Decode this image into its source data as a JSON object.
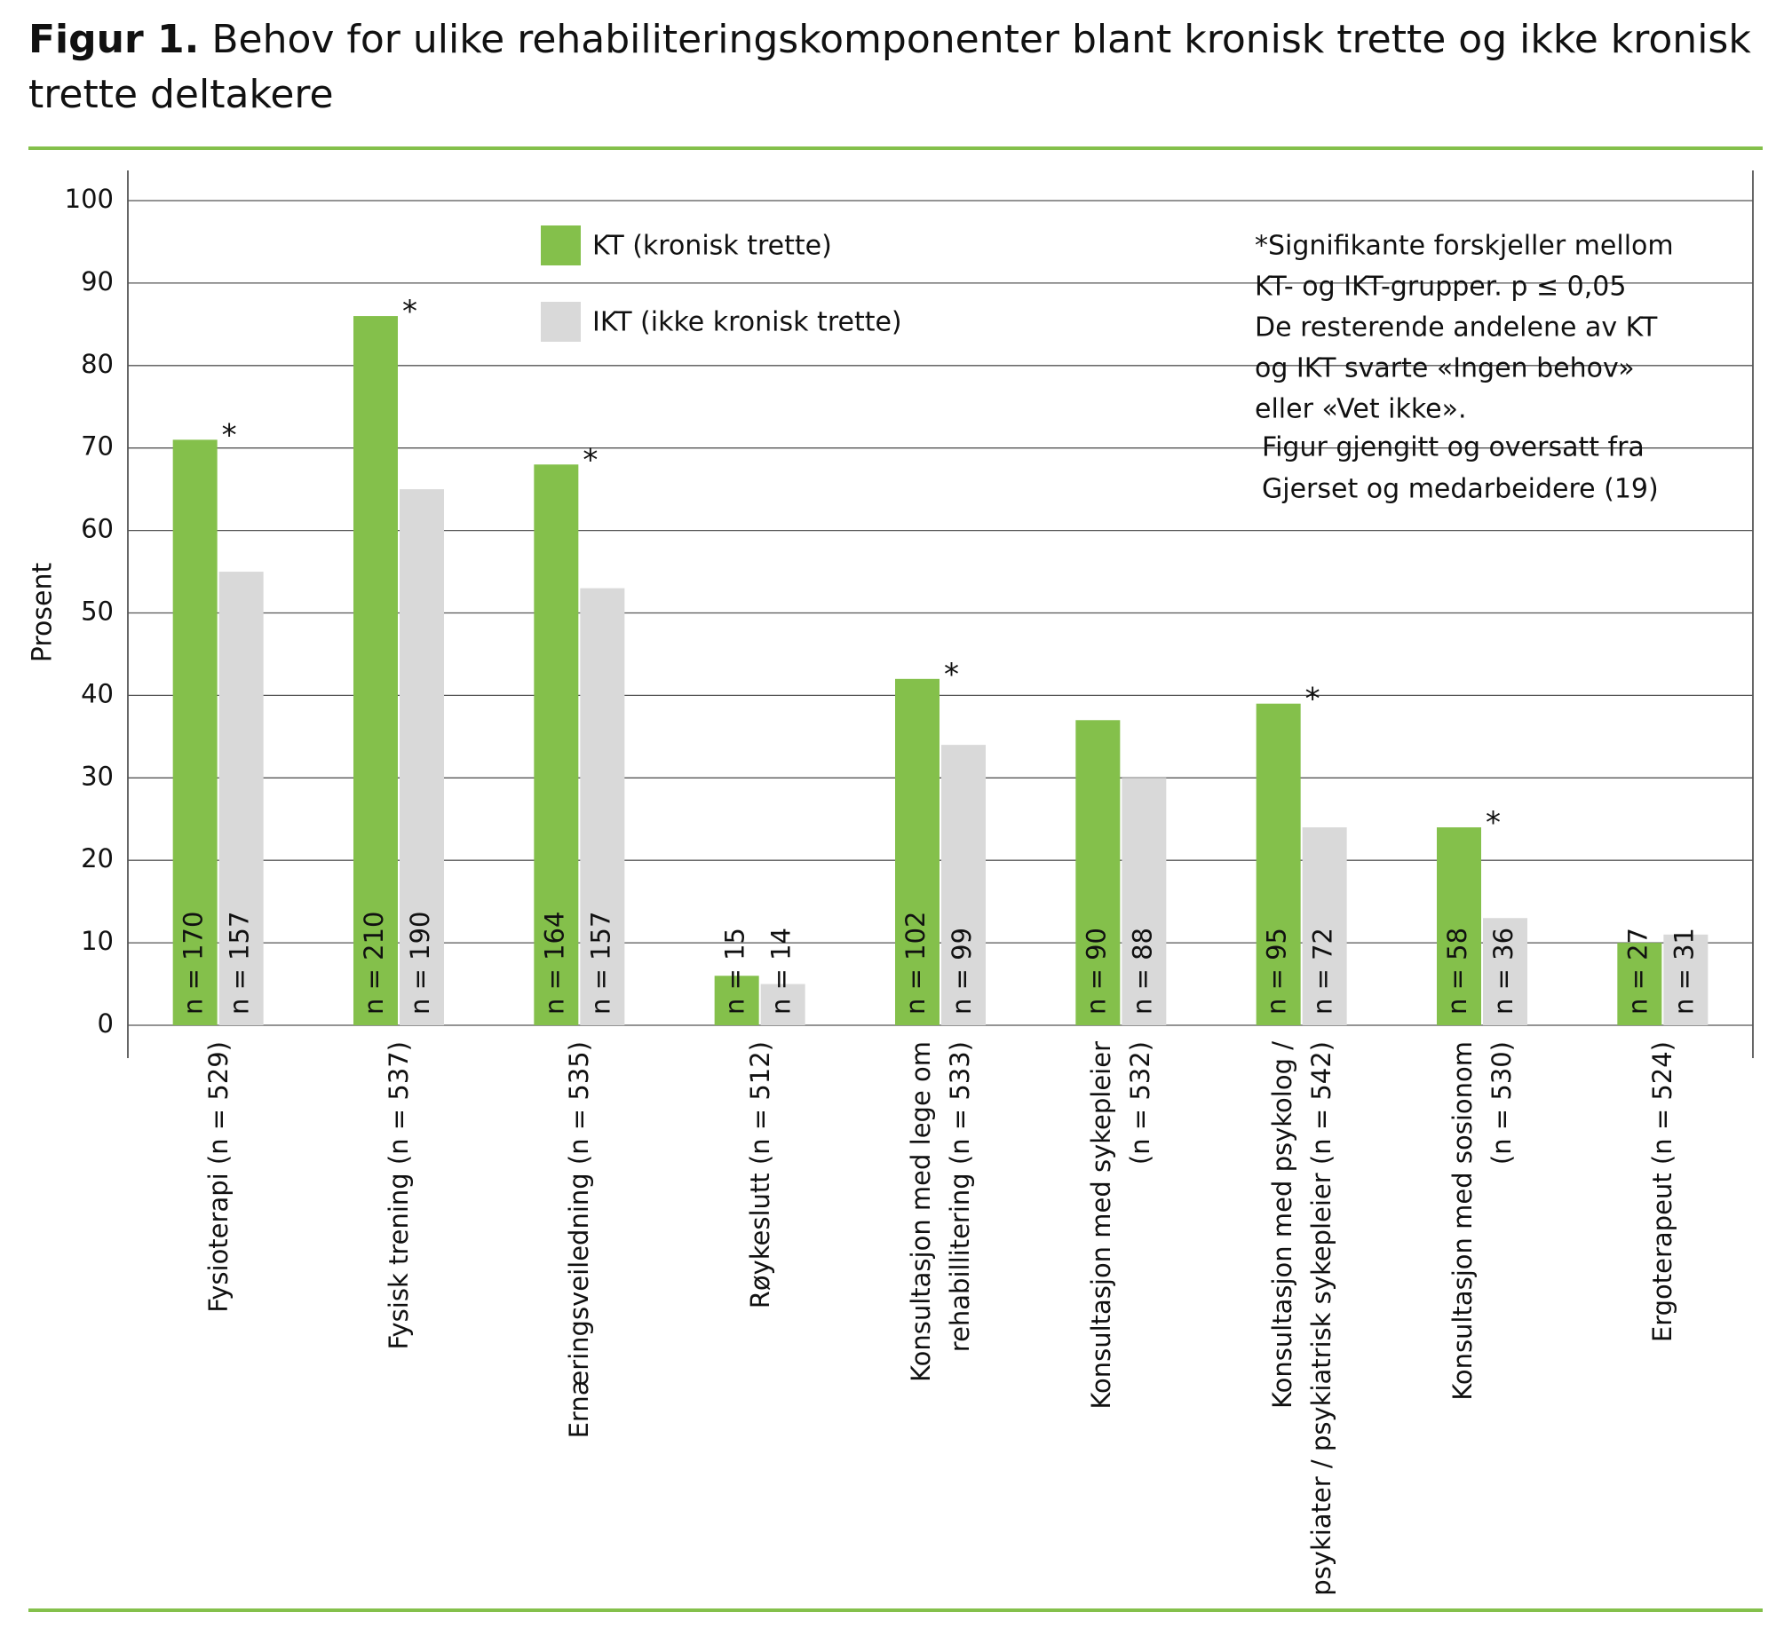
{
  "chart_data": {
    "type": "bar",
    "title_prefix": "Figur 1.",
    "title": "Behov for ulike rehabiliteringskomponenter blant kronisk trette og ikke kronisk trette deltakere",
    "y_label": "Prosent",
    "categories": [
      "Fysioterapi (n = 529)",
      "Fysisk trening (n = 537)",
      "Ernæringsveiledning (n = 535)",
      "Røykeslutt (n = 512)",
      "Konsultasjon med lege om\nrehabillitering (n = 533)",
      "Konsultasjon med sykepleier\n(n = 532)",
      "Konsultasjon med psykolog /\npsykiater / psykiatrisk sykepleier (n = 542)",
      "Konsultasjon med sosionom\n(n = 530)",
      "Ergoterapeut (n = 524)"
    ],
    "series": [
      {
        "name": "KT (kronisk trette)",
        "color": "#84c04b",
        "values": [
          71,
          86,
          68,
          6,
          42,
          37,
          39,
          24,
          10
        ],
        "n_labels": [
          "n = 170",
          "n = 210",
          "n = 164",
          "n = 15",
          "n = 102",
          "n = 90",
          "n = 95",
          "n = 58",
          "n = 27"
        ]
      },
      {
        "name": "IKT (ikke kronisk trette)",
        "color": "#d9d9d9",
        "values": [
          55,
          65,
          53,
          5,
          34,
          30,
          24,
          13,
          11
        ],
        "n_labels": [
          "n = 157",
          "n = 190",
          "n = 157",
          "n = 14",
          "n = 99",
          "n = 88",
          "n = 72",
          "n = 36",
          "n = 31"
        ]
      }
    ],
    "markers": [
      "*",
      "*",
      "*",
      null,
      "*",
      null,
      "*",
      "*",
      null
    ],
    "note": [
      "*Signifikante forskjeller mellom",
      "KT- og IKT-grupper. p ≤ 0,05",
      "De resterende andelene av KT",
      "og IKT svarte «Ingen behov»",
      "eller «Vet ikke»."
    ],
    "source": [
      "Figur gjengitt og oversatt fra",
      "Gjerset og medarbeidere (19)"
    ],
    "ylim": [
      0,
      100
    ],
    "yticks": [
      0,
      10,
      20,
      30,
      40,
      50,
      60,
      70,
      80,
      90,
      100
    ],
    "grid": true
  }
}
